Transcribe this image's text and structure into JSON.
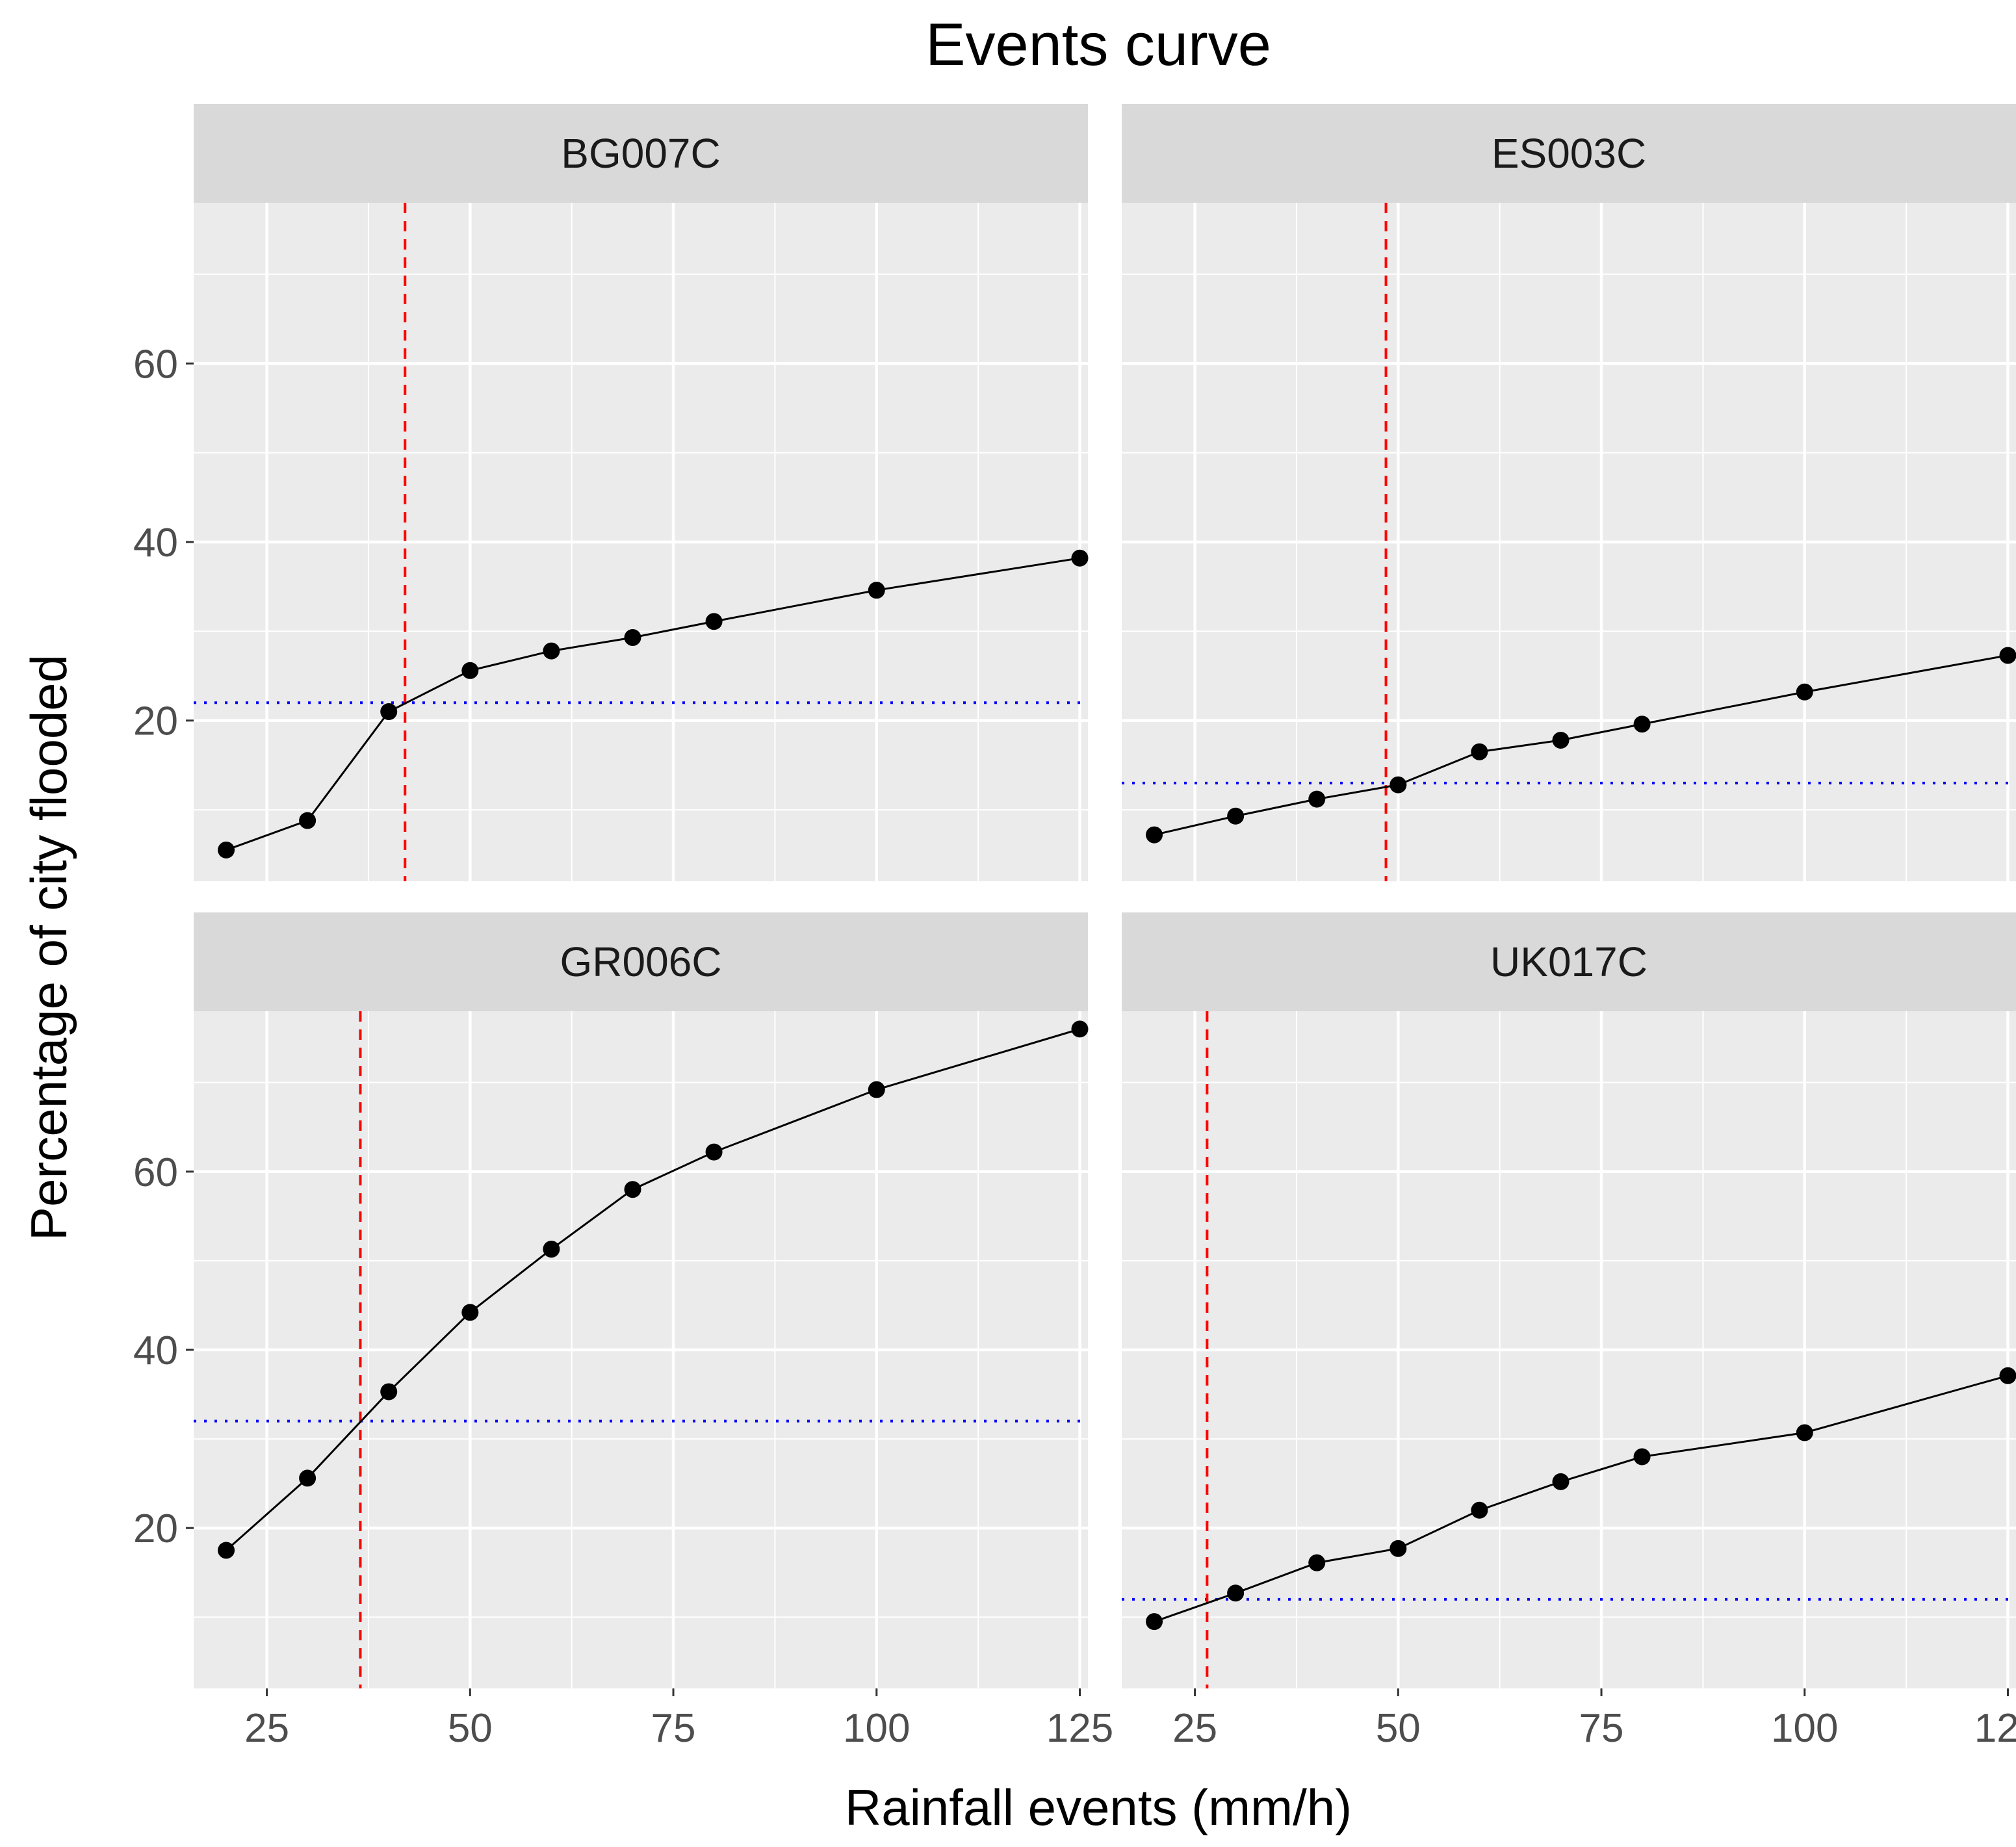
{
  "chart_data": {
    "type": "line",
    "title": "Events curve",
    "xlabel": "Rainfall events (mm/h)",
    "ylabel": "Percentage of city flooded",
    "xlim": [
      16,
      126
    ],
    "ylim": [
      2,
      78
    ],
    "x_ticks": [
      25,
      50,
      75,
      100,
      125
    ],
    "y_ticks": [
      20,
      40,
      60
    ],
    "grid": true,
    "legend": "none",
    "colors": {
      "panel_background": "#ebebeb",
      "grid": "#ffffff",
      "strip_background": "#d9d9d9",
      "series": "#000000",
      "threshold_x": "#ff0000",
      "threshold_y": "#0000ff"
    },
    "facets": [
      {
        "name": "BG007C",
        "x": [
          20,
          30,
          40,
          50,
          60,
          70,
          80,
          100,
          125
        ],
        "y": [
          5.5,
          8.8,
          21,
          25.6,
          27.8,
          29.3,
          31.1,
          34.6,
          38.2
        ],
        "threshold_x": 42,
        "threshold_y": 22
      },
      {
        "name": "ES003C",
        "x": [
          20,
          30,
          40,
          50,
          60,
          70,
          80,
          100,
          125
        ],
        "y": [
          7.2,
          9.3,
          11.2,
          12.8,
          16.5,
          17.8,
          19.6,
          23.2,
          27.3
        ],
        "threshold_x": 48.5,
        "threshold_y": 13
      },
      {
        "name": "GR006C",
        "x": [
          20,
          30,
          40,
          50,
          60,
          70,
          80,
          100,
          125
        ],
        "y": [
          17.5,
          25.6,
          35.3,
          44.2,
          51.3,
          58,
          62.2,
          69.2,
          76
        ],
        "threshold_x": 36.5,
        "threshold_y": 32
      },
      {
        "name": "UK017C",
        "x": [
          20,
          30,
          40,
          50,
          60,
          70,
          80,
          100,
          125
        ],
        "y": [
          9.5,
          12.7,
          16.1,
          17.7,
          22,
          25.2,
          28,
          30.7,
          37.1
        ],
        "threshold_x": 26.5,
        "threshold_y": 12
      }
    ]
  }
}
